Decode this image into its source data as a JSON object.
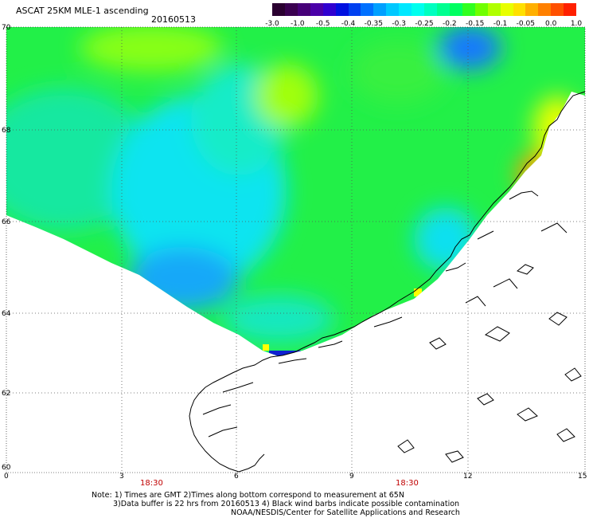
{
  "header": {
    "title": "ASCAT 25KM MLE-1 ascending",
    "date": "20160513"
  },
  "colorbar": {
    "colors": [
      "#2a0030",
      "#3a0050",
      "#460078",
      "#4a00a8",
      "#3000d0",
      "#0010e0",
      "#0040f0",
      "#0070ff",
      "#00a0ff",
      "#00c8ff",
      "#00e8ff",
      "#00ffee",
      "#00ffc0",
      "#00ff90",
      "#00ff60",
      "#30ff20",
      "#70ff00",
      "#b0ff00",
      "#e8ff00",
      "#ffe000",
      "#ffb000",
      "#ff8000",
      "#ff5000",
      "#ff2000"
    ],
    "labels": [
      "-3.0",
      "-1.0",
      "-0.5",
      "-0.4",
      "-0.35",
      "-0.3",
      "-0.25",
      "-0.2",
      "-0.15",
      "-0.1",
      "-0.05",
      "0.0",
      "1.0"
    ]
  },
  "axes": {
    "y_labels": [
      "70",
      "68",
      "66",
      "64",
      "62",
      "60"
    ],
    "x_labels": [
      "0",
      "3",
      "6",
      "9",
      "12",
      "15"
    ],
    "time_labels": [
      "18:30",
      "18:30"
    ]
  },
  "notes": {
    "line1": "Note: 1) Times are GMT 2)Times along bottom correspond to measurement at 65N",
    "line2": "3)Data buffer is 22 hrs from 20160513 4) Black wind barbs indicate possible contamination",
    "line3": "NOAA/NESDIS/Center for Satellite Applications and Research"
  }
}
